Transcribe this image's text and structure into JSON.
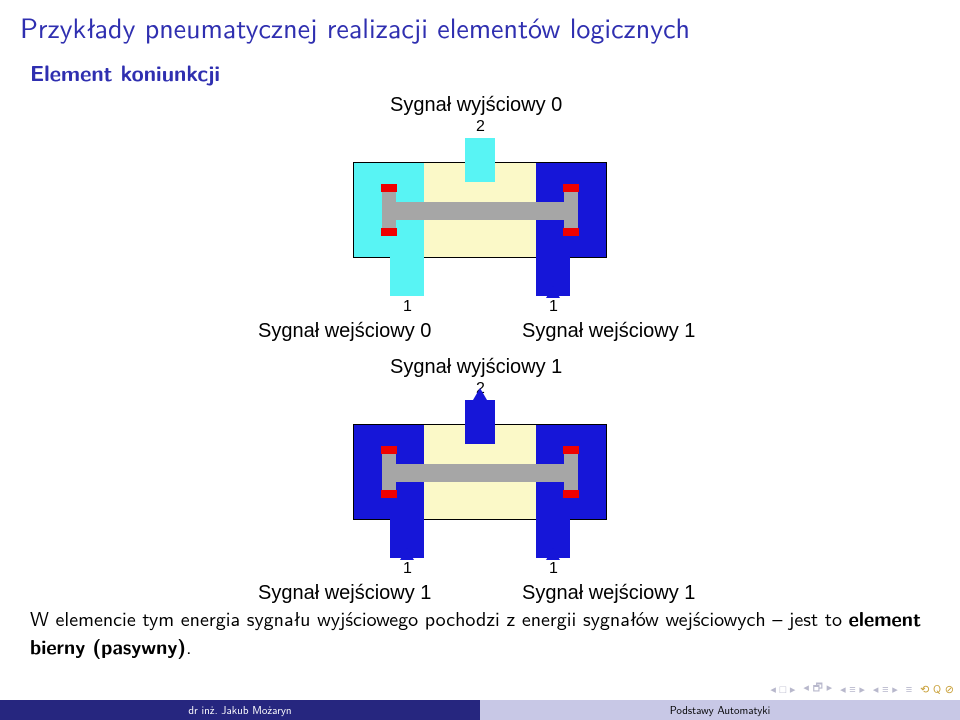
{
  "colors": {
    "title_color": "#2f2fb0",
    "subheader_color": "#2f2fb0",
    "valve_bg": "#fbf9c8",
    "valve_border": "#000000",
    "port_blue": "#1616d8",
    "port_cyan": "#58f4f4",
    "spool_gray": "#a6a6a6",
    "land_red": "#f00000",
    "footer_left_bg": "#26267f",
    "footer_left_text": "#ffffff",
    "footer_right_bg": "#c8c8e6",
    "footer_right_text": "#000000",
    "nav_icon_color": "#b8b8cc",
    "nav_loop_color": "#c9a13a",
    "arrow_blue": "#1616d8"
  },
  "title": "Przykłady pneumatycznej realizacji elementów logicznych",
  "subheader": "Element koniunkcji",
  "states": [
    {
      "top_label": "Sygnał wyjściowy 0",
      "top_port": "2",
      "left_port": "1",
      "right_port": "1",
      "bottom_left_label": "Sygnał wejściowy 0",
      "bottom_right_label": "Sygnał wejściowy 1",
      "left_active": false,
      "right_active": true,
      "out_active": false,
      "piston_at_right": false
    },
    {
      "top_label": "Sygnał wyjściowy 1",
      "top_port": "2",
      "left_port": "1",
      "right_port": "1",
      "bottom_left_label": "Sygnał wejściowy 1",
      "bottom_right_label": "Sygnał wejściowy 1",
      "left_active": true,
      "right_active": true,
      "out_active": true,
      "piston_at_right": false
    }
  ],
  "body_text_prefix": "W elemencie tym energia sygnału wyjściowego pochodzi z energii sygnałów wejściowych – jest to ",
  "body_text_bold": "element bierny (pasywny)",
  "body_text_suffix": ".",
  "footer": {
    "left": "dr inż. Jakub Możaryn",
    "right": "Podstawy Automatyki"
  },
  "nav_glyphs": [
    "◂ □ ▸",
    "◂ 🗗 ▸",
    "◂ ≡ ▸",
    "◂ ≡ ▸",
    "≡"
  ],
  "nav_loop": "⟲ Q ⊘"
}
